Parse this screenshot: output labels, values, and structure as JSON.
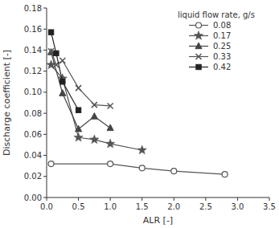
{
  "chart_data": {
    "type": "line",
    "xlabel": "ALR [-]",
    "ylabel": "Discharge coefficient [-]",
    "legend_title": "liquid flow rate, g/s",
    "legend": "upper right",
    "grid": false,
    "xlim": [
      0,
      3.5
    ],
    "ylim": [
      0.0,
      0.18
    ],
    "xticks": [
      {
        "value": 0.0,
        "label": "0.0"
      },
      0.5,
      {
        "value": 1.0,
        "label": "1.0"
      },
      1.5,
      {
        "value": 2.0,
        "label": "2.0"
      },
      2.5,
      {
        "value": 3.0,
        "label": "3.0"
      },
      3.5
    ],
    "yticks": [
      {
        "value": 0.0,
        "label": "0.00"
      },
      0.02,
      0.04,
      0.06,
      0.08,
      {
        "value": 0.1,
        "label": "0.10"
      },
      0.12,
      0.14,
      0.16,
      0.18
    ],
    "series": [
      {
        "name": "0.08",
        "marker": "circle-open",
        "color": "#555555",
        "x": [
          0.07,
          1.0,
          1.5,
          2.0,
          2.8
        ],
        "values": [
          0.032,
          0.032,
          0.028,
          0.025,
          0.022
        ]
      },
      {
        "name": "0.17",
        "marker": "star",
        "color": "#555555",
        "x": [
          0.07,
          0.25,
          0.5,
          0.75,
          1.0,
          1.5
        ],
        "values": [
          0.126,
          0.113,
          0.057,
          0.055,
          0.051,
          0.045
        ]
      },
      {
        "name": "0.25",
        "marker": "triangle",
        "color": "#444444",
        "x": [
          0.07,
          0.25,
          0.5,
          0.75,
          1.0
        ],
        "values": [
          0.138,
          0.099,
          0.065,
          0.077,
          0.066
        ]
      },
      {
        "name": "0.33",
        "marker": "x",
        "color": "#555555",
        "x": [
          0.07,
          0.15,
          0.25,
          0.5,
          0.75,
          1.0
        ],
        "values": [
          0.139,
          0.126,
          0.13,
          0.104,
          0.088,
          0.087
        ]
      },
      {
        "name": "0.42",
        "marker": "square",
        "color": "#222222",
        "x": [
          0.07,
          0.15,
          0.25,
          0.5
        ],
        "values": [
          0.157,
          0.137,
          0.11,
          0.083
        ]
      }
    ]
  }
}
